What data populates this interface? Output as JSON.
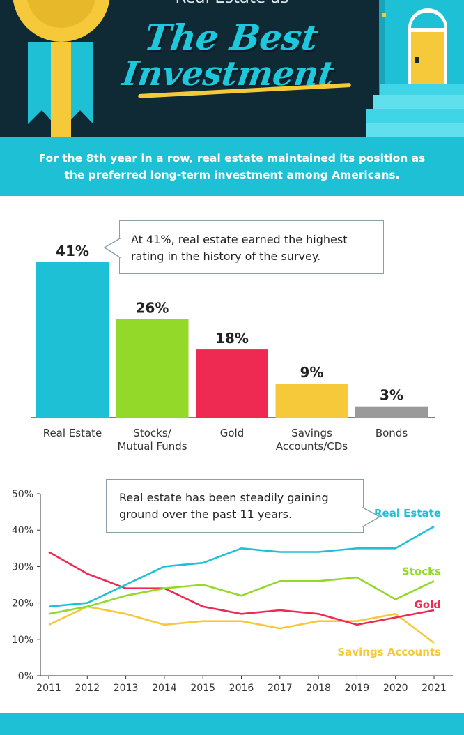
{
  "header": {
    "kicker": "Real Estate as",
    "title_line1": "The Best",
    "title_line2": "Investment"
  },
  "subhead": {
    "text": "For the 8th year in a row, real estate maintained its position as the preferred long-term investment among Americans."
  },
  "bar_callout": "At 41%, real estate earned the highest rating in the history of the survey.",
  "line_callout": "Real estate has been steadily gaining ground over the past 11 years.",
  "colors": {
    "teal": "#1ec0d6",
    "green": "#93d92a",
    "red": "#ee2a52",
    "yellow": "#f5c93a",
    "gray": "#9a9a9a",
    "navy": "#0f2a35"
  },
  "chart_data": [
    {
      "type": "bar",
      "categories": [
        "Real Estate",
        "Stocks/\nMutual Funds",
        "Gold",
        "Savings\nAccounts/CDs",
        "Bonds"
      ],
      "values": [
        41,
        26,
        18,
        9,
        3
      ],
      "value_labels": [
        "41%",
        "26%",
        "18%",
        "9%",
        "3%"
      ],
      "colors": [
        "#1ec0d6",
        "#93d92a",
        "#ee2a52",
        "#f5c93a",
        "#9a9a9a"
      ],
      "ylim": [
        0,
        41
      ],
      "grid": false
    },
    {
      "type": "line",
      "x": [
        "2011",
        "2012",
        "2013",
        "2014",
        "2015",
        "2016",
        "2017",
        "2018",
        "2019",
        "2020",
        "2021"
      ],
      "ylim": [
        0,
        50
      ],
      "yticks": [
        "0%",
        "10%",
        "20%",
        "30%",
        "40%",
        "50%"
      ],
      "grid": false,
      "series": [
        {
          "name": "Real Estate",
          "color": "#1ec0d6",
          "values": [
            19,
            20,
            25,
            30,
            31,
            35,
            34,
            34,
            35,
            35,
            41
          ]
        },
        {
          "name": "Stocks",
          "color": "#93d92a",
          "values": [
            17,
            19,
            22,
            24,
            25,
            22,
            26,
            26,
            27,
            21,
            26
          ]
        },
        {
          "name": "Gold",
          "color": "#ee2a52",
          "values": [
            34,
            28,
            24,
            24,
            19,
            17,
            18,
            17,
            14,
            16,
            18
          ]
        },
        {
          "name": "Savings Accounts",
          "color": "#f5c93a",
          "values": [
            14,
            19,
            17,
            14,
            15,
            15,
            13,
            15,
            15,
            17,
            9
          ]
        }
      ]
    }
  ]
}
